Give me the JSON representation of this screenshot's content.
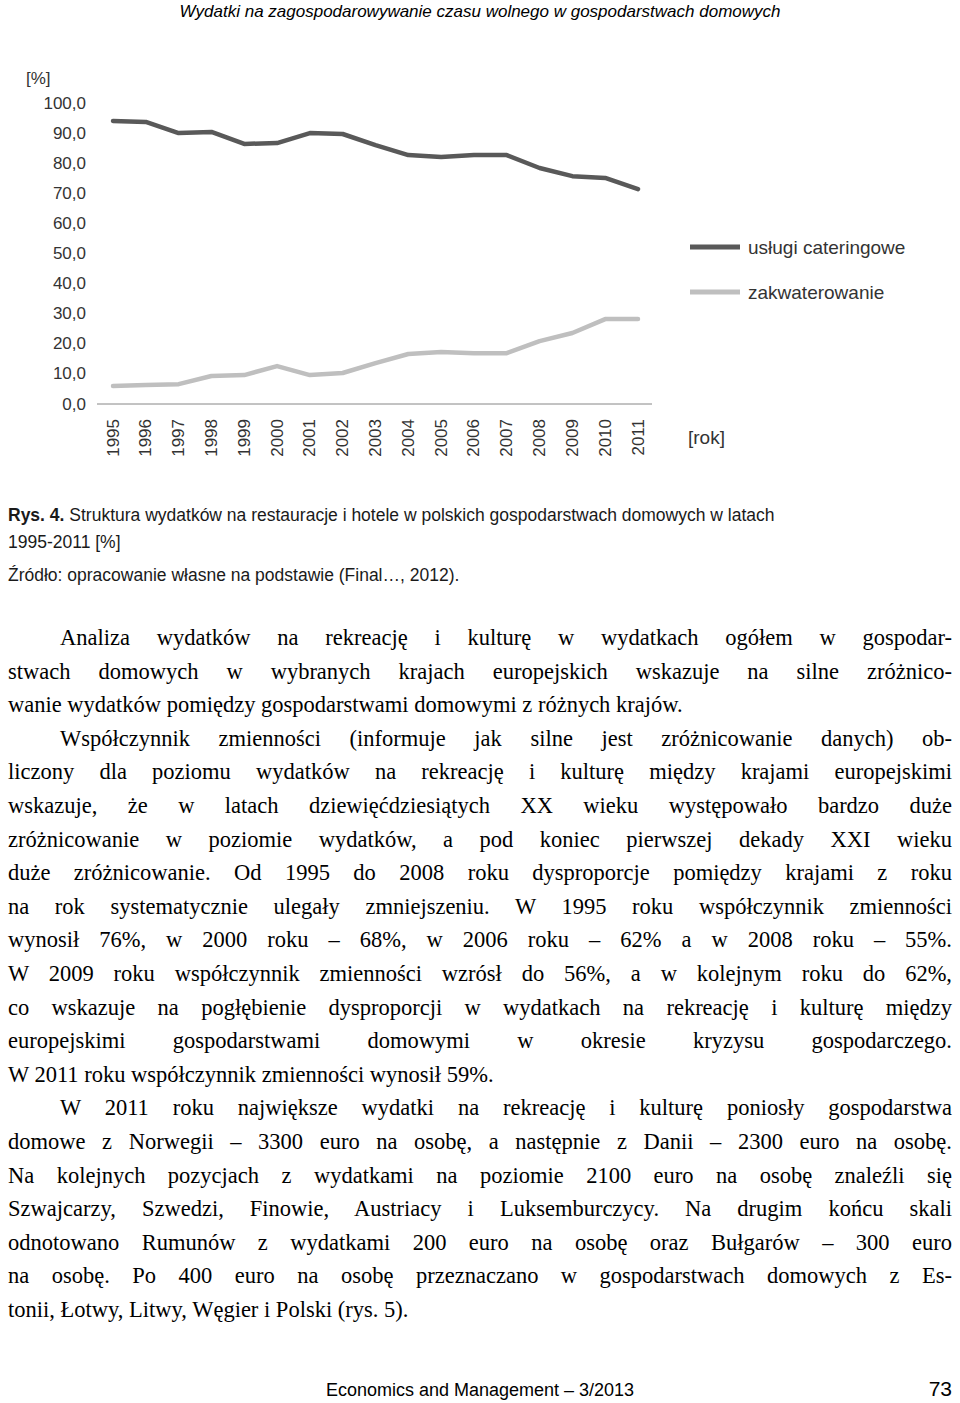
{
  "header": {
    "title": "Wydatki na zagospodarowywanie czasu wolnego w gospodarstwach domowych"
  },
  "chart_data": {
    "type": "line",
    "ylabel": "[%]",
    "xlabel": "[rok]",
    "categories": [
      "1995",
      "1996",
      "1997",
      "1998",
      "1999",
      "2000",
      "2001",
      "2002",
      "2003",
      "2004",
      "2005",
      "2006",
      "2007",
      "2008",
      "2009",
      "2010",
      "2011"
    ],
    "series": [
      {
        "name": "usługi cateringowe",
        "color": "#595959",
        "values": [
          94.0,
          93.7,
          90.0,
          90.4,
          86.4,
          86.7,
          90.0,
          89.7,
          86.0,
          82.7,
          82.1,
          82.7,
          82.7,
          78.4,
          75.7,
          75.1,
          71.4
        ]
      },
      {
        "name": "zakwaterowanie",
        "color": "#bfbfbf",
        "values": [
          6.0,
          6.3,
          6.6,
          9.3,
          9.6,
          12.6,
          9.6,
          10.3,
          13.6,
          16.6,
          17.3,
          16.9,
          16.9,
          20.9,
          23.6,
          28.2,
          28.2
        ]
      }
    ],
    "ylim": [
      0,
      100
    ],
    "yticks": [
      {
        "value": 0,
        "label": "0,0"
      },
      {
        "value": 10,
        "label": "10,0"
      },
      {
        "value": 20,
        "label": "20,0"
      },
      {
        "value": 30,
        "label": "30,0"
      },
      {
        "value": 40,
        "label": "40,0"
      },
      {
        "value": 50,
        "label": "50,0"
      },
      {
        "value": 60,
        "label": "60,0"
      },
      {
        "value": 70,
        "label": "70,0"
      },
      {
        "value": 80,
        "label": "80,0"
      },
      {
        "value": 90,
        "label": "90,0"
      },
      {
        "value": 100,
        "label": "100,0"
      }
    ],
    "grid": false,
    "legend": "right"
  },
  "caption": {
    "label": "Rys. 4.",
    "lines": [
      "Struktura wydatków na restauracje i hotele w polskich gospodarstwach domowych w latach",
      "1995-2011 [%]"
    ]
  },
  "source": "Źródło: opracowanie własne na podstawie (Final…, 2012).",
  "paragraphs": [
    [
      "Analiza wydatków na rekreację i kulturę w wydatkach ogółem w gospodar-",
      "stwach domowych w wybranych krajach europejskich wskazuje na silne zróżnico-",
      "wanie wydatków pomiędzy gospodarstwami domowymi z różnych krajów."
    ],
    [
      "Współczynnik zmienności (informuje jak silne jest zróżnicowanie danych) ob-",
      "liczony dla poziomu wydatków na rekreację i kulturę między krajami europejskimi",
      "wskazuje, że w latach dziewięćdziesiątych XX wieku występowało bardzo duże",
      "zróżnicowanie w poziomie wydatków, a pod koniec pierwszej dekady XXI wieku",
      "duże zróżnicowanie. Od 1995 do 2008 roku dysproporcje pomiędzy krajami z roku",
      "na rok systematycznie ulegały zmniejszeniu. W 1995 roku współczynnik zmienności",
      "wynosił 76%, w 2000 roku – 68%, w 2006 roku – 62% a w 2008 roku – 55%.",
      "W 2009 roku współczynnik zmienności wzrósł do 56%, a w kolejnym roku do 62%,",
      "co wskazuje na pogłębienie dysproporcji w wydatkach na rekreację i kulturę między",
      "europejskimi gospodarstwami domowymi w okresie kryzysu gospodarczego.",
      "W 2011 roku współczynnik zmienności wynosił 59%."
    ],
    [
      "W 2011 roku największe wydatki na rekreację i kulturę poniosły gospodarstwa",
      "domowe z Norwegii – 3300 euro na osobę, a następnie z Danii – 2300 euro na osobę.",
      "Na kolejnych pozycjach z wydatkami na poziomie 2100 euro na osobę znaleźli się",
      "Szwajcarzy, Szwedzi, Finowie, Austriacy i Luksemburczycy. Na drugim końcu skali",
      "odnotowano Rumunów z wydatkami 200 euro na osobę oraz Bułgarów – 300 euro",
      "na osobę. Po 400 euro na osobę przeznaczano w gospodarstwach domowych z Es-",
      "tonii, Łotwy, Litwy, Węgier i Polski (rys. 5)."
    ]
  ],
  "footer": {
    "journal": "Economics and Management – 3/2013",
    "page": 73
  }
}
